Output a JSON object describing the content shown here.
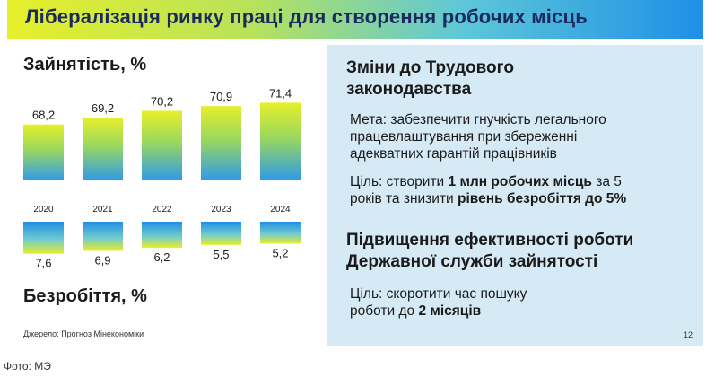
{
  "slide": {
    "title": "Лібералізація ринку праці для створення робочих місць",
    "source": "Джерело: Прогноз Мінекономіки",
    "page_number": "12"
  },
  "photo_credit": "Фото: МЭ",
  "colors": {
    "title_gradient": [
      "#e6ef2a",
      "#b8e25a",
      "#5ec8d8",
      "#1f8fe6"
    ],
    "panel_bg": "#d6eaf5",
    "bar_top_color": "#1f8fe6",
    "bar_bottom_color": "#e6ef2a"
  },
  "chart_data": [
    {
      "type": "bar",
      "title": "Зайнятість, %",
      "categories": [
        "2020",
        "2021",
        "2022",
        "2023",
        "2024"
      ],
      "series": [
        {
          "values": [
            68.2,
            69.2,
            70.2,
            70.9,
            71.4
          ]
        }
      ],
      "value_labels": [
        "68,2",
        "69,2",
        "70,2",
        "70,9",
        "71,4"
      ],
      "grid": false
    },
    {
      "type": "bar",
      "title": "Безробіття, %",
      "categories": [
        "2020",
        "2021",
        "2022",
        "2023",
        "2024"
      ],
      "series": [
        {
          "values": [
            7.6,
            6.9,
            6.2,
            5.5,
            5.2
          ]
        }
      ],
      "value_labels": [
        "7,6",
        "6,9",
        "6,2",
        "5,5",
        "5,2"
      ],
      "orientation": "downward",
      "grid": false
    }
  ],
  "panel": {
    "section1": {
      "heading_line1": "Зміни до Трудового",
      "heading_line2": "законодавства",
      "goal_line1": "Мета: забезпечити гнучкість легального",
      "goal_line2": "працевлаштування при збереженні",
      "goal_line3": "адекватних гарантій працівників",
      "target_prefix": "Ціль: створити ",
      "target_bold1": "1 млн робочих місць",
      "target_mid": " за 5",
      "target_line2_prefix": "років та знизити ",
      "target_bold2": "рівень безробіття до 5%"
    },
    "section2": {
      "heading_line1": "Підвищення ефективності роботи",
      "heading_line2": "Державної служби зайнятості",
      "target_line1": "Ціль: скоротити час пошуку",
      "target_line2_prefix": "роботи до ",
      "target_bold": "2 місяців"
    }
  }
}
